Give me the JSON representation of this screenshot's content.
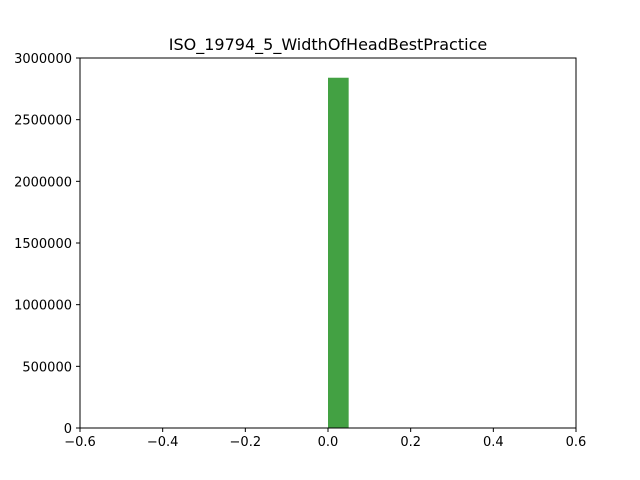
{
  "chart_data": {
    "type": "bar",
    "title": "ISO_19794_5_WidthOfHeadBestPractice",
    "xlabel": "",
    "ylabel": "",
    "xlim": [
      -0.6,
      0.6
    ],
    "ylim": [
      0,
      3000000
    ],
    "x_ticks": [
      -0.6,
      -0.4,
      -0.2,
      0.0,
      0.2,
      0.4,
      0.6
    ],
    "x_tick_labels": [
      "−0.6",
      "−0.4",
      "−0.2",
      "0.0",
      "0.2",
      "0.4",
      "0.6"
    ],
    "y_ticks": [
      0,
      500000,
      1000000,
      1500000,
      2000000,
      2500000,
      3000000
    ],
    "y_tick_labels": [
      "0",
      "500000",
      "1000000",
      "1500000",
      "2000000",
      "2500000",
      "3000000"
    ],
    "grid": false,
    "bars": [
      {
        "x_start": 0.0,
        "x_end": 0.05,
        "value": 2840000
      }
    ],
    "colors": {
      "bar": "#43a143",
      "axes": "#000000",
      "background": "#ffffff"
    }
  }
}
